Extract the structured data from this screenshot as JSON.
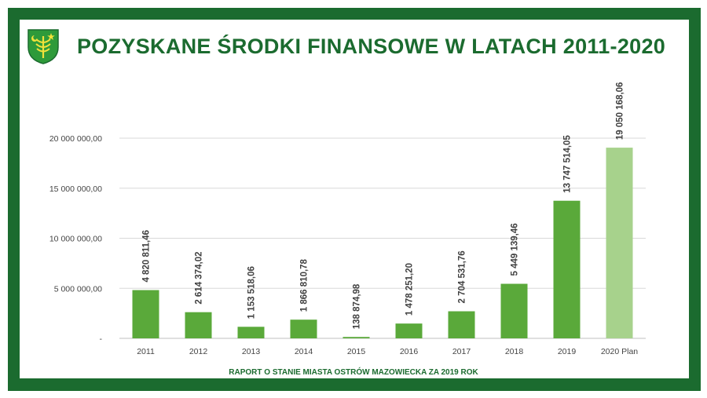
{
  "header": {
    "title": "POZYSKANE ŚRODKI FINANSOWE W LATACH 2011-2020",
    "logo_icon": "coat-of-arms-icon"
  },
  "footer": {
    "text": "RAPORT O STANIE MIASTA OSTRÓW MAZOWIECKA ZA 2019 ROK"
  },
  "colors": {
    "frame": "#1b6b2f",
    "bar": "#5aa93a",
    "bar_plan": "#a7d28c",
    "grid": "#d9d9d9"
  },
  "chart_data": {
    "type": "bar",
    "title": "POZYSKANE ŚRODKI FINANSOWE W LATACH 2011-2020",
    "xlabel": "",
    "ylabel": "",
    "ylim": [
      0,
      20000000
    ],
    "yticks": [
      0,
      5000000,
      10000000,
      15000000,
      20000000
    ],
    "ytick_labels": [
      "-",
      "5 000 000,00",
      "10 000 000,00",
      "15 000 000,00",
      "20 000 000,00"
    ],
    "grid": true,
    "legend": "none",
    "categories": [
      "2011",
      "2012",
      "2013",
      "2014",
      "2015",
      "2016",
      "2017",
      "2018",
      "2019",
      "2020 Plan"
    ],
    "values": [
      4820811.46,
      2614374.02,
      1153518.06,
      1866810.78,
      138874.98,
      1478251.2,
      2704531.76,
      5449139.46,
      13747514.05,
      19050168.06
    ],
    "data_labels": [
      "4 820 811,46",
      "2 614 374,02",
      "1 153 518,06",
      "1 866 810,78",
      "138 874,98",
      "1 478 251,20",
      "2 704 531,76",
      "5 449 139,46",
      "13 747 514,05",
      "19 050 168,06"
    ],
    "highlight": [
      false,
      false,
      false,
      false,
      false,
      false,
      false,
      false,
      false,
      true
    ]
  }
}
